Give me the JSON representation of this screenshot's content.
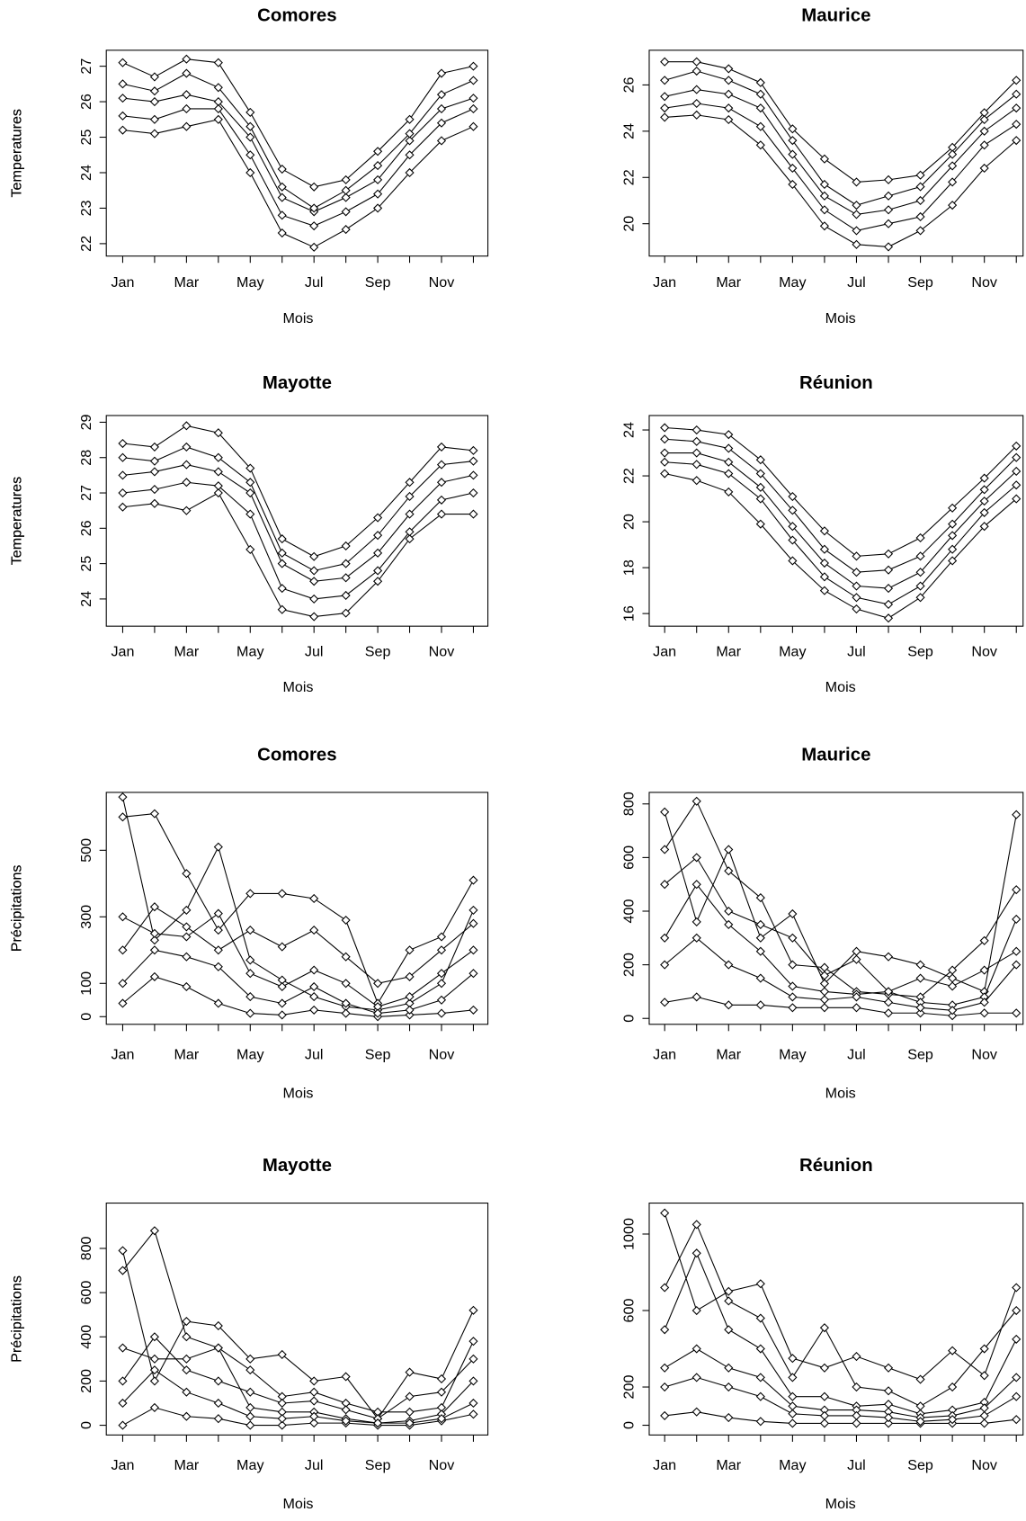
{
  "chart_data": [
    {
      "type": "line",
      "title": "Comores",
      "ylabel": "Temperatures",
      "xlabel": "Mois",
      "categories": [
        "Jan",
        null,
        "Mar",
        null,
        "May",
        null,
        "Jul",
        null,
        "Sep",
        null,
        "Nov",
        null
      ],
      "ylim": [
        21.65,
        27.45
      ],
      "yticks": [
        22,
        23,
        24,
        25,
        26,
        27
      ],
      "series": [
        {
          "color": "#000000",
          "values": [
            26.1,
            26,
            26.2,
            26,
            25,
            23.3,
            22.9,
            23.3,
            23.8,
            24.9,
            25.8,
            26.1
          ]
        },
        {
          "color": "#000000",
          "values": [
            27.1,
            26.7,
            27.2,
            27.1,
            25.7,
            24.1,
            23.6,
            23.8,
            24.6,
            25.5,
            26.8,
            27
          ]
        },
        {
          "color": "#000000",
          "values": [
            25.2,
            25.1,
            25.3,
            25.5,
            24,
            22.3,
            21.9,
            22.4,
            23,
            24,
            24.9,
            25.3
          ]
        },
        {
          "color": "#000000",
          "values": [
            26.5,
            26.3,
            26.8,
            26.4,
            25.3,
            23.6,
            23,
            23.5,
            24.2,
            25.1,
            26.2,
            26.6
          ]
        },
        {
          "color": "#000000",
          "values": [
            25.6,
            25.5,
            25.8,
            25.8,
            24.5,
            22.8,
            22.5,
            22.9,
            23.4,
            24.5,
            25.4,
            25.8
          ]
        }
      ]
    },
    {
      "type": "line",
      "title": "Maurice",
      "ylabel": "Temperatures",
      "xlabel": "Mois",
      "categories": [
        "Jan",
        null,
        "Mar",
        null,
        "May",
        null,
        "Jul",
        null,
        "Sep",
        null,
        "Nov",
        null
      ],
      "ylim": [
        18.6,
        27.5
      ],
      "yticks": [
        20,
        22,
        24,
        26
      ],
      "series": [
        {
          "color": "#000000",
          "values": [
            25.5,
            25.8,
            25.6,
            25,
            23,
            21.2,
            20.4,
            20.6,
            21,
            22.5,
            24,
            25
          ]
        },
        {
          "color": "#000000",
          "values": [
            27,
            27,
            26.7,
            26.1,
            24.1,
            22.8,
            21.8,
            21.9,
            22.1,
            23.3,
            24.8,
            26.2
          ]
        },
        {
          "color": "#000000",
          "values": [
            24.6,
            24.7,
            24.5,
            23.4,
            21.7,
            19.9,
            19.1,
            19,
            19.7,
            20.8,
            22.4,
            23.6
          ]
        },
        {
          "color": "#000000",
          "values": [
            26.2,
            26.6,
            26.2,
            25.6,
            23.6,
            21.7,
            20.8,
            21.2,
            21.6,
            23,
            24.5,
            25.6
          ]
        },
        {
          "color": "#000000",
          "values": [
            25,
            25.2,
            25,
            24.2,
            22.4,
            20.6,
            19.7,
            20,
            20.3,
            21.8,
            23.4,
            24.3
          ]
        }
      ]
    },
    {
      "type": "line",
      "title": "Mayotte",
      "ylabel": "Temperatures",
      "xlabel": "Mois",
      "categories": [
        "Jan",
        null,
        "Mar",
        null,
        "May",
        null,
        "Jul",
        null,
        "Sep",
        null,
        "Nov",
        null
      ],
      "ylim": [
        23.23,
        29.19
      ],
      "yticks": [
        24,
        25,
        26,
        27,
        28,
        29
      ],
      "series": [
        {
          "color": "#000000",
          "values": [
            27.5,
            27.6,
            27.8,
            27.6,
            27,
            25,
            24.5,
            24.6,
            25.3,
            26.4,
            27.3,
            27.5
          ]
        },
        {
          "color": "#000000",
          "values": [
            28.4,
            28.3,
            28.9,
            28.7,
            27.7,
            25.7,
            25.2,
            25.5,
            26.3,
            27.3,
            28.3,
            28.2
          ]
        },
        {
          "color": "#000000",
          "values": [
            26.6,
            26.7,
            26.5,
            27,
            25.4,
            23.7,
            23.5,
            23.6,
            24.5,
            25.7,
            26.4,
            26.4
          ]
        },
        {
          "color": "#000000",
          "values": [
            28,
            27.9,
            28.3,
            28,
            27.3,
            25.3,
            24.8,
            25,
            25.8,
            26.9,
            27.8,
            27.9
          ]
        },
        {
          "color": "#000000",
          "values": [
            27,
            27.1,
            27.3,
            27.2,
            26.4,
            24.3,
            24,
            24.1,
            24.8,
            25.9,
            26.8,
            27
          ]
        }
      ]
    },
    {
      "type": "line",
      "title": "Réunion",
      "ylabel": "Temperatures",
      "xlabel": "Mois",
      "categories": [
        "Jan",
        null,
        "Mar",
        null,
        "May",
        null,
        "Jul",
        null,
        "Sep",
        null,
        "Nov",
        null
      ],
      "ylim": [
        15.45,
        24.63
      ],
      "yticks": [
        16,
        18,
        20,
        22,
        24
      ],
      "series": [
        {
          "color": "#000000",
          "values": [
            23,
            23,
            22.6,
            21.5,
            19.8,
            18.2,
            17.2,
            17.1,
            17.8,
            19.4,
            20.9,
            22.2
          ]
        },
        {
          "color": "#000000",
          "values": [
            24.1,
            24,
            23.8,
            22.7,
            21.1,
            19.6,
            18.5,
            18.6,
            19.3,
            20.6,
            21.9,
            23.3
          ]
        },
        {
          "color": "#000000",
          "values": [
            22.1,
            21.8,
            21.3,
            19.9,
            18.3,
            17,
            16.2,
            15.8,
            16.7,
            18.3,
            19.8,
            21
          ]
        },
        {
          "color": "#000000",
          "values": [
            23.6,
            23.5,
            23.2,
            22.1,
            20.5,
            18.8,
            17.8,
            17.9,
            18.5,
            19.9,
            21.4,
            22.8
          ]
        },
        {
          "color": "#000000",
          "values": [
            22.6,
            22.5,
            22.1,
            21,
            19.2,
            17.6,
            16.7,
            16.4,
            17.2,
            18.8,
            20.4,
            21.6
          ]
        }
      ]
    },
    {
      "type": "line",
      "title": "Comores",
      "ylabel": "Précipitations",
      "xlabel": "Mois",
      "categories": [
        "Jan",
        null,
        "Mar",
        null,
        "May",
        null,
        "Jul",
        null,
        "Sep",
        null,
        "Nov",
        null
      ],
      "ylim": [
        -23,
        674
      ],
      "yticks": [
        0,
        100,
        300,
        500
      ],
      "series": [
        {
          "color": "#000000",
          "values": [
            660,
            230,
            320,
            510,
            170,
            110,
            60,
            30,
            20,
            40,
            100,
            320
          ]
        },
        {
          "color": "#000000",
          "values": [
            600,
            610,
            430,
            260,
            370,
            370,
            355,
            290,
            40,
            200,
            240,
            410
          ]
        },
        {
          "color": "#000000",
          "values": [
            40,
            120,
            90,
            40,
            10,
            5,
            20,
            10,
            0,
            5,
            10,
            20
          ]
        },
        {
          "color": "#000000",
          "values": [
            300,
            250,
            240,
            310,
            130,
            90,
            140,
            100,
            30,
            60,
            130,
            200
          ]
        },
        {
          "color": "#000000",
          "values": [
            200,
            330,
            270,
            200,
            260,
            210,
            260,
            180,
            100,
            120,
            200,
            280
          ]
        },
        {
          "color": "#000000",
          "values": [
            100,
            200,
            180,
            150,
            60,
            40,
            90,
            40,
            10,
            20,
            50,
            130
          ]
        }
      ]
    },
    {
      "type": "line",
      "title": "Maurice",
      "ylabel": "Précipitations",
      "xlabel": "Mois",
      "categories": [
        "Jan",
        null,
        "Mar",
        null,
        "May",
        null,
        "Jul",
        null,
        "Sep",
        null,
        "Nov",
        null
      ],
      "ylim": [
        -22,
        843
      ],
      "yticks": [
        0,
        200,
        400,
        600,
        800
      ],
      "series": [
        {
          "color": "#000000",
          "values": [
            770,
            360,
            630,
            300,
            390,
            130,
            250,
            230,
            200,
            150,
            100,
            760
          ]
        },
        {
          "color": "#000000",
          "values": [
            630,
            810,
            550,
            450,
            200,
            190,
            100,
            90,
            80,
            180,
            290,
            480
          ]
        },
        {
          "color": "#000000",
          "values": [
            60,
            80,
            50,
            50,
            40,
            40,
            40,
            20,
            20,
            10,
            20,
            20
          ]
        },
        {
          "color": "#000000",
          "values": [
            300,
            500,
            350,
            250,
            120,
            100,
            90,
            100,
            60,
            50,
            80,
            370
          ]
        },
        {
          "color": "#000000",
          "values": [
            200,
            300,
            200,
            150,
            80,
            70,
            80,
            60,
            40,
            30,
            60,
            200
          ]
        },
        {
          "color": "#000000",
          "values": [
            500,
            600,
            400,
            350,
            300,
            160,
            220,
            100,
            150,
            120,
            180,
            250
          ]
        }
      ]
    },
    {
      "type": "line",
      "title": "Mayotte",
      "ylabel": "Précipitations",
      "xlabel": "Mois",
      "categories": [
        "Jan",
        null,
        "Mar",
        null,
        "May",
        null,
        "Jul",
        null,
        "Sep",
        null,
        "Nov",
        null
      ],
      "ylim": [
        -44,
        1005
      ],
      "yticks": [
        0,
        200,
        400,
        600,
        800
      ],
      "series": [
        {
          "color": "#000000",
          "values": [
            790,
            200,
            470,
            450,
            300,
            320,
            200,
            220,
            30,
            240,
            210,
            520
          ]
        },
        {
          "color": "#000000",
          "values": [
            700,
            880,
            400,
            350,
            250,
            130,
            150,
            100,
            60,
            60,
            80,
            380
          ]
        },
        {
          "color": "#000000",
          "values": [
            0,
            80,
            40,
            30,
            0,
            0,
            10,
            10,
            0,
            0,
            20,
            50
          ]
        },
        {
          "color": "#000000",
          "values": [
            350,
            300,
            300,
            350,
            80,
            60,
            60,
            30,
            10,
            20,
            50,
            200
          ]
        },
        {
          "color": "#000000",
          "values": [
            200,
            400,
            250,
            200,
            150,
            100,
            110,
            70,
            30,
            130,
            150,
            300
          ]
        },
        {
          "color": "#000000",
          "values": [
            100,
            250,
            150,
            100,
            40,
            30,
            40,
            20,
            10,
            10,
            30,
            100
          ]
        }
      ]
    },
    {
      "type": "line",
      "title": "Réunion",
      "ylabel": "Précipitations",
      "xlabel": "Mois",
      "categories": [
        "Jan",
        null,
        "Mar",
        null,
        "May",
        null,
        "Jul",
        null,
        "Sep",
        null,
        "Nov",
        null
      ],
      "ylim": [
        -51,
        1162
      ],
      "yticks": [
        0,
        200,
        600,
        1000
      ],
      "series": [
        {
          "color": "#000000",
          "values": [
            1110,
            600,
            700,
            740,
            350,
            300,
            360,
            300,
            240,
            390,
            260,
            720
          ]
        },
        {
          "color": "#000000",
          "values": [
            720,
            1050,
            650,
            560,
            250,
            510,
            200,
            180,
            100,
            200,
            400,
            600
          ]
        },
        {
          "color": "#000000",
          "values": [
            50,
            70,
            40,
            20,
            10,
            10,
            10,
            10,
            10,
            10,
            10,
            30
          ]
        },
        {
          "color": "#000000",
          "values": [
            500,
            900,
            500,
            400,
            150,
            150,
            100,
            110,
            60,
            80,
            120,
            450
          ]
        },
        {
          "color": "#000000",
          "values": [
            300,
            400,
            300,
            250,
            100,
            80,
            80,
            70,
            40,
            50,
            90,
            250
          ]
        },
        {
          "color": "#000000",
          "values": [
            200,
            250,
            200,
            150,
            60,
            50,
            50,
            40,
            20,
            30,
            50,
            150
          ]
        }
      ]
    }
  ]
}
